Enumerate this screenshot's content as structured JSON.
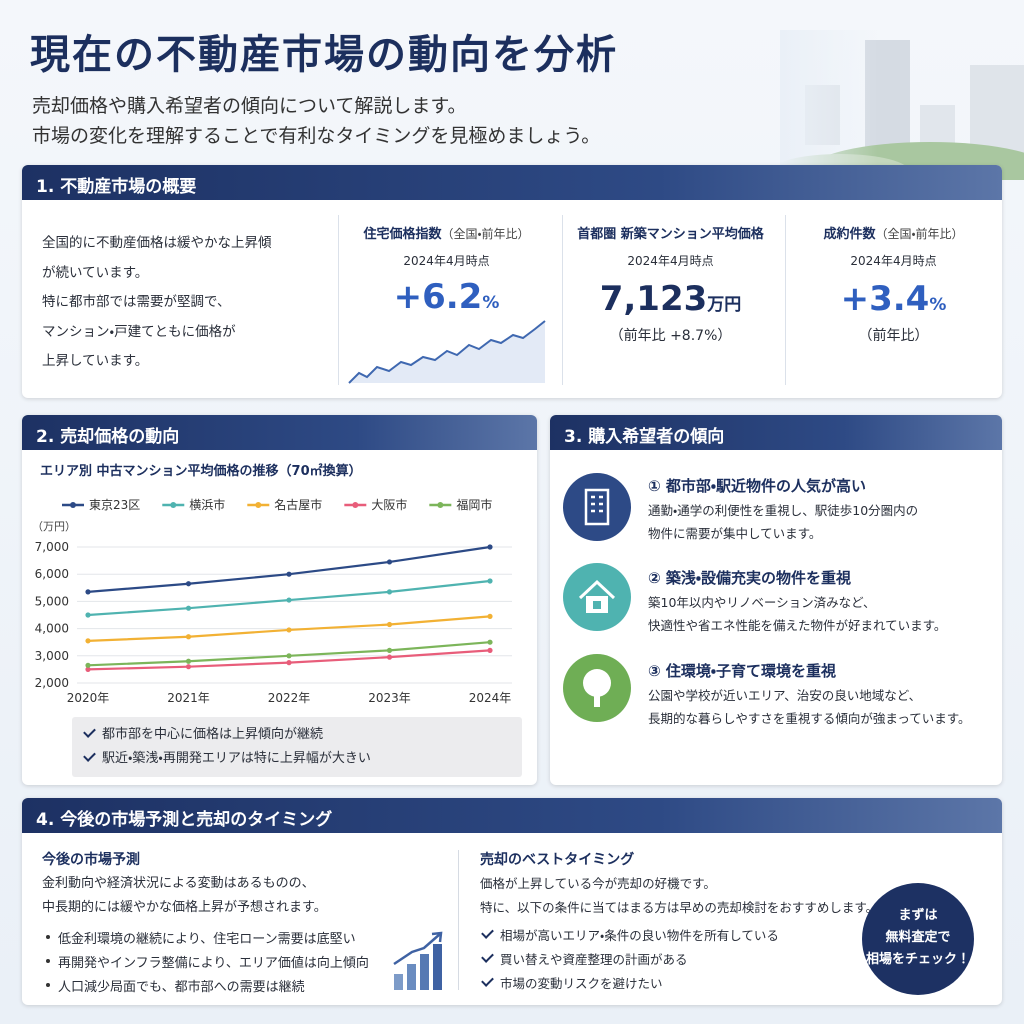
{
  "header": {
    "title": "現在の不動産市場の動向を分析",
    "subtitle_lines": [
      "売却価格や購入希望者の傾向について解説します。",
      "市場の変化を理解することで有利なタイミングを見極めましょう。"
    ]
  },
  "section1": {
    "heading": "1. 不動産市場の概要",
    "summary_lines": [
      "全国的に不動産価格は緩やかな上昇傾",
      "が続いています。",
      "特に都市部では需要が堅調で、",
      "マンション・戸建てともに価格が",
      "上昇しています。"
    ],
    "cards": [
      {
        "title": "住宅価格指数",
        "note": "（全国・前年比）",
        "date": "2024年4月時点",
        "value": "+6.2",
        "unit": "%"
      },
      {
        "title": "首都圏 新築マンション平均価格",
        "date": "2024年4月時点",
        "value": "7,123",
        "unit": "万円",
        "sub": "（前年比 +8.7%）"
      },
      {
        "title": "成約件数",
        "note": "（全国・前年比）",
        "date": "2024年4月時点",
        "value": "+3.4",
        "unit": "%",
        "sub": "（前年比）"
      }
    ]
  },
  "section2": {
    "heading": "2. 売却価格の動向",
    "checks": [
      "都市部を中心に価格は上昇傾向が継続",
      "駅近・築浅・再開発エリアは特に上昇幅が大きい"
    ]
  },
  "chart_data": {
    "type": "line",
    "title": "エリア別 中古マンション平均価格の推移（70㎡換算）",
    "y_label": "（万円）",
    "categories": [
      "2020年",
      "2021年",
      "2022年",
      "2023年",
      "2024年"
    ],
    "series": [
      {
        "name": "東京23区",
        "color": "#2c4a86",
        "values": [
          5350,
          5650,
          6000,
          6450,
          7000
        ]
      },
      {
        "name": "横浜市",
        "color": "#4fb3b0",
        "values": [
          4500,
          4750,
          5050,
          5350,
          5750
        ]
      },
      {
        "name": "名古屋市",
        "color": "#f2b134",
        "values": [
          3550,
          3700,
          3950,
          4150,
          4450
        ]
      },
      {
        "name": "大阪市",
        "color": "#e85d7a",
        "values": [
          2500,
          2600,
          2750,
          2950,
          3200
        ]
      },
      {
        "name": "福岡市",
        "color": "#7cb55a",
        "values": [
          2650,
          2800,
          3000,
          3200,
          3500
        ]
      }
    ],
    "ylim": [
      2000,
      7000
    ],
    "yticks": [
      {
        "value": 2000,
        "label": "2,000"
      },
      {
        "value": 3000,
        "label": "3,000"
      },
      {
        "value": 4000,
        "label": "4,000"
      },
      {
        "value": 5000,
        "label": "5,000"
      },
      {
        "value": 6000,
        "label": "6,000"
      },
      {
        "value": 7000,
        "label": "7,000"
      }
    ],
    "grid": true,
    "legend": "top"
  },
  "section3": {
    "heading": "3. 購入希望者の傾向",
    "items": [
      {
        "title": "① 都市部・駅近物件の人気が高い",
        "lines": [
          "通勤・通学の利便性を重視し、駅徒歩10分圏内の",
          "物件に需要が集中しています。"
        ]
      },
      {
        "title": "② 築浅・設備充実の物件を重視",
        "lines": [
          "築10年以内やリノベーション済みなど、",
          "快適性や省エネ性能を備えた物件が好まれています。"
        ]
      },
      {
        "title": "③ 住環境・子育て環境を重視",
        "lines": [
          "公園や学校が近いエリア、治安の良い地域など、",
          "長期的な暮らしやすさを重視する傾向が強まっています。"
        ]
      }
    ]
  },
  "section4": {
    "heading": "4. 今後の市場予測と売却のタイミング",
    "left": {
      "title": "今後の市場予測",
      "lines": [
        "金利動向や経済状況による変動はあるものの、",
        "中長期的には緩やかな価格上昇が予想されます。"
      ],
      "bullets": [
        "低金利環境の継続により、住宅ローン需要は底堅い",
        "再開発やインフラ整備により、エリア価値は向上傾向",
        "人口減少局面でも、都市部への需要は継続"
      ]
    },
    "right": {
      "title": "売却のベストタイミング",
      "lines": [
        "価格が上昇している今が売却の好機です。",
        "特に、以下の条件に当てはまる方は早めの売却検討をおすすめします。"
      ],
      "checks": [
        "相場が高いエリア・条件の良い物件を所有している",
        "買い替えや資産整理の計画がある",
        "市場の変動リスクを避けたい"
      ]
    },
    "badge_lines": [
      "まずは",
      "無料査定で",
      "相場をチェック！"
    ]
  }
}
